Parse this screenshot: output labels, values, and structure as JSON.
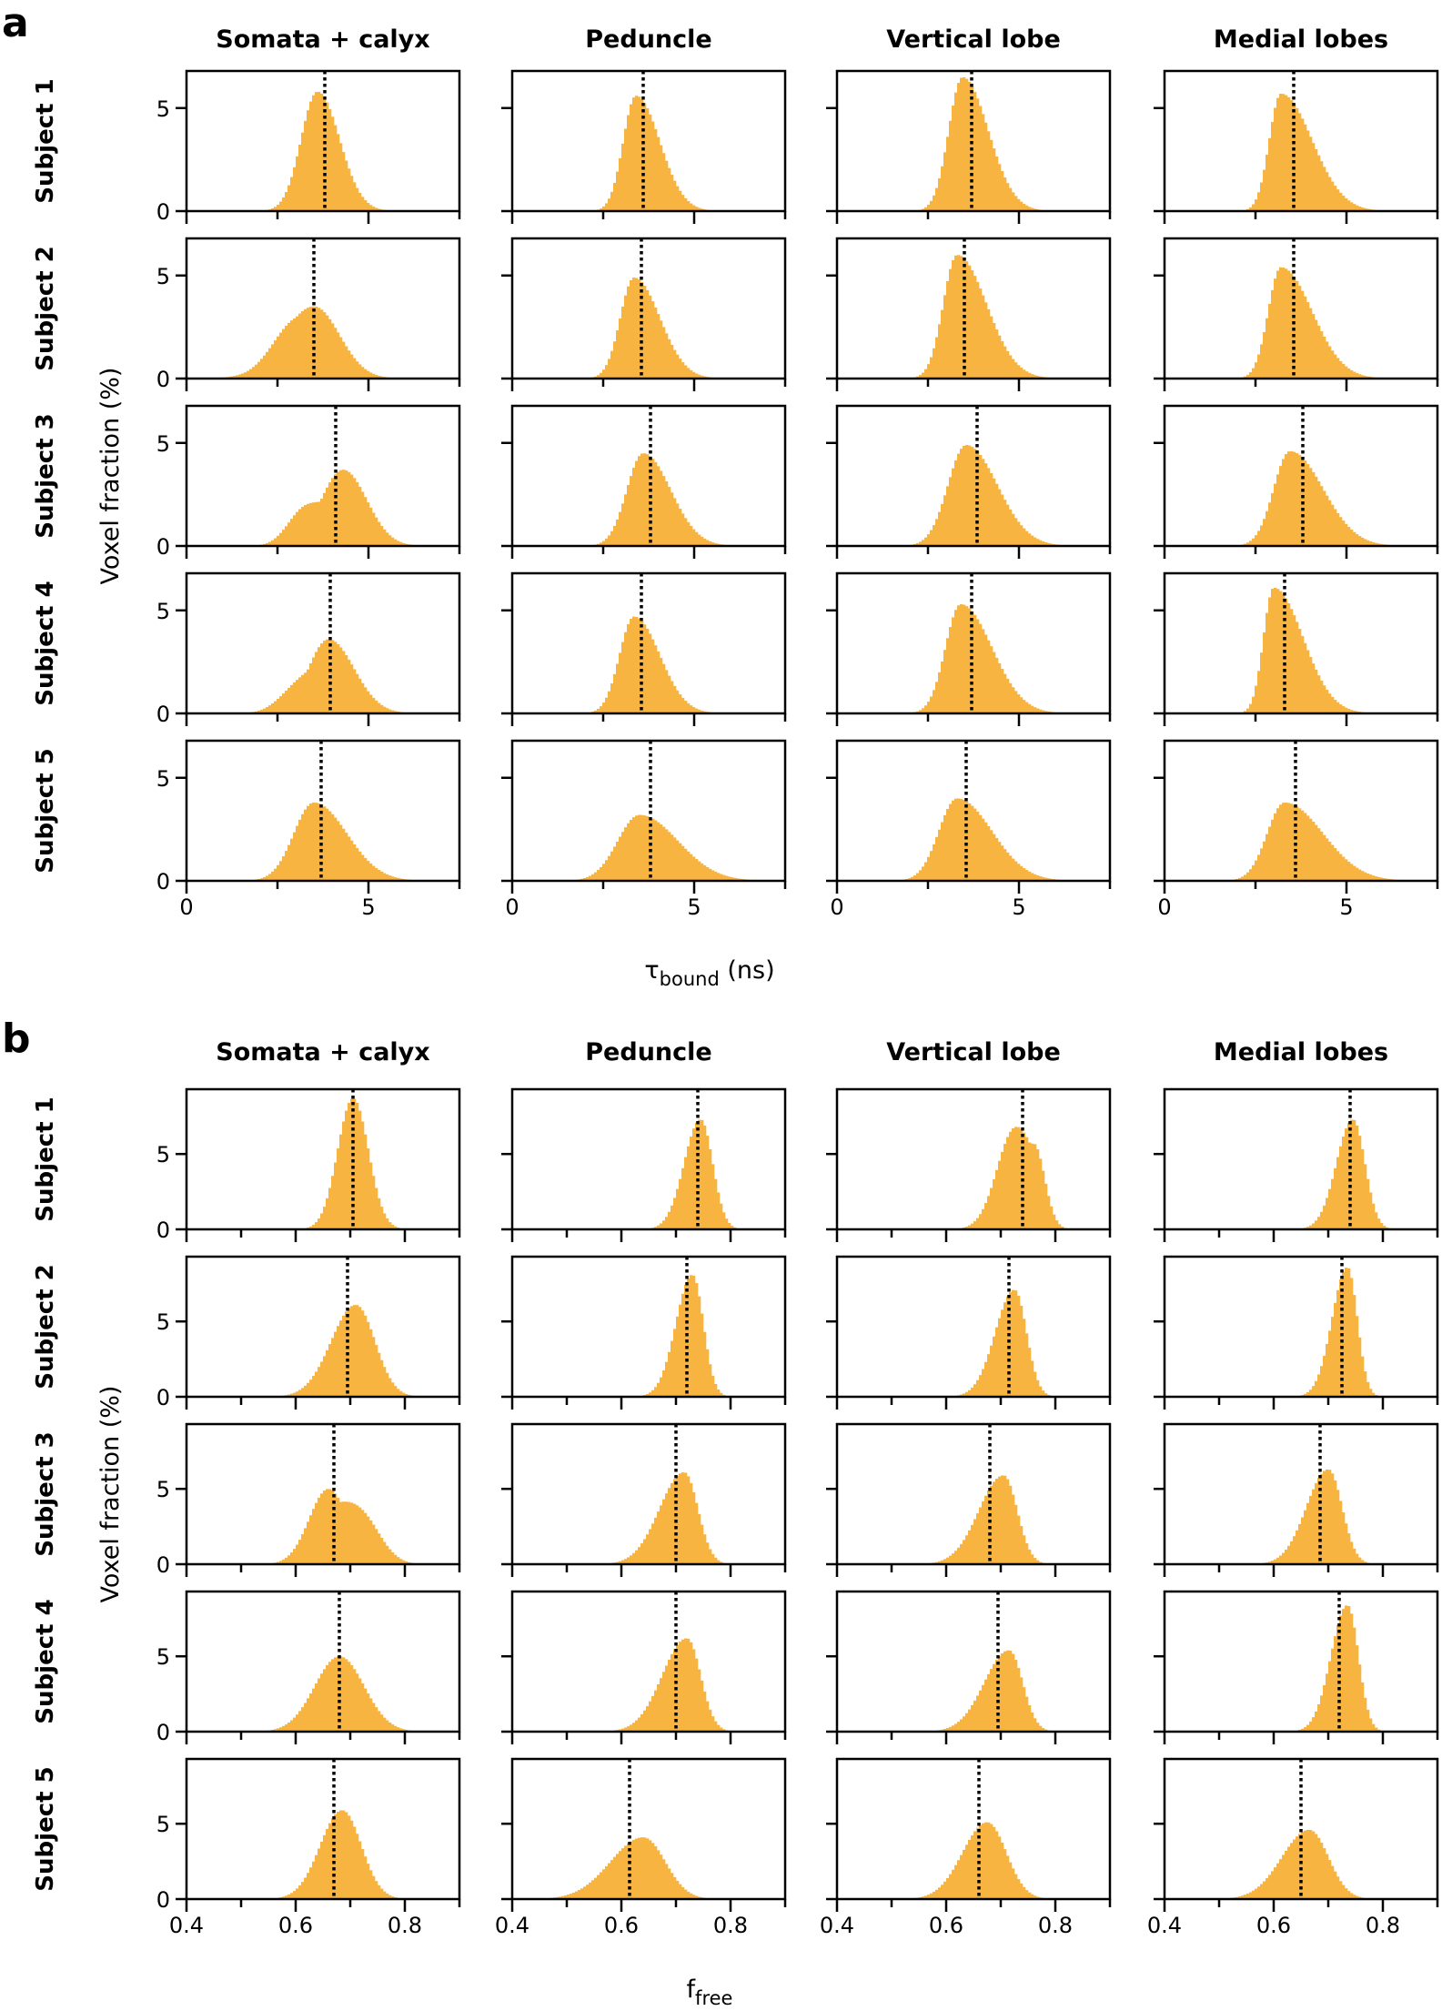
{
  "figure": {
    "bar_color": "#F7B440",
    "mean_line_color": "#000000",
    "mean_line_style": "dotted"
  },
  "chart_data": [
    {
      "panel": "a",
      "type": "bar",
      "subtype": "histogram-grid",
      "columns": [
        "Somata + calyx",
        "Peduncle",
        "Vertical lobe",
        "Medial lobes"
      ],
      "rows": [
        "Subject 1",
        "Subject 2",
        "Subject 3",
        "Subject 4",
        "Subject 5"
      ],
      "xlabel_main": "τ",
      "xlabel_sub": "bound",
      "xlabel_unit": " (ns)",
      "ylabel": "Voxel fraction (%)",
      "xlim": [
        0,
        7.5
      ],
      "ylim": [
        0,
        6.8
      ],
      "xticks": [
        0,
        2.5,
        5,
        7.5
      ],
      "xtick_labels": [
        "0",
        "",
        "5",
        ""
      ],
      "yticks": [
        0,
        5
      ],
      "ytick_labels": [
        "0",
        "5"
      ],
      "grid": false,
      "bin_width": 0.075,
      "description": "Each cell is a histogram of voxel fraction (%) vs tau_bound; dotted line marks the mean. Values summarized by peak location, peak height, spread and skew.",
      "cells": [
        [
          {
            "peak": 3.6,
            "height": 5.8,
            "sd_left": 0.45,
            "sd_right": 0.6,
            "mean": 3.8
          },
          {
            "peak": 3.4,
            "height": 5.6,
            "sd_left": 0.35,
            "sd_right": 0.65,
            "mean": 3.6
          },
          {
            "peak": 3.45,
            "height": 6.5,
            "sd_left": 0.38,
            "sd_right": 0.7,
            "mean": 3.7
          },
          {
            "peak": 3.2,
            "height": 5.7,
            "sd_left": 0.32,
            "sd_right": 0.85,
            "mean": 3.55
          }
        ],
        [
          {
            "peak": 3.5,
            "height": 3.5,
            "sd_left": 0.85,
            "sd_right": 0.7,
            "mean": 3.5,
            "shoulder": {
              "x": 2.9,
              "h": 1.2,
              "sd": 0.6
            }
          },
          {
            "peak": 3.35,
            "height": 4.9,
            "sd_left": 0.38,
            "sd_right": 0.7,
            "mean": 3.55
          },
          {
            "peak": 3.3,
            "height": 6.0,
            "sd_left": 0.38,
            "sd_right": 0.8,
            "mean": 3.5
          },
          {
            "peak": 3.2,
            "height": 5.4,
            "sd_left": 0.35,
            "sd_right": 0.85,
            "mean": 3.55
          }
        ],
        [
          {
            "peak": 4.3,
            "height": 3.7,
            "sd_left": 0.6,
            "sd_right": 0.65,
            "mean": 4.1,
            "shoulder": {
              "x": 3.2,
              "h": 1.5,
              "sd": 0.45
            }
          },
          {
            "peak": 3.6,
            "height": 4.5,
            "sd_left": 0.45,
            "sd_right": 0.75,
            "mean": 3.8
          },
          {
            "peak": 3.55,
            "height": 4.9,
            "sd_left": 0.5,
            "sd_right": 0.85,
            "mean": 3.85
          },
          {
            "peak": 3.45,
            "height": 4.6,
            "sd_left": 0.45,
            "sd_right": 0.9,
            "mean": 3.8
          }
        ],
        [
          {
            "peak": 3.9,
            "height": 3.6,
            "sd_left": 0.55,
            "sd_right": 0.7,
            "mean": 3.95,
            "shoulder": {
              "x": 3.0,
              "h": 1.0,
              "sd": 0.5
            }
          },
          {
            "peak": 3.35,
            "height": 4.7,
            "sd_left": 0.4,
            "sd_right": 0.7,
            "mean": 3.55
          },
          {
            "peak": 3.4,
            "height": 5.3,
            "sd_left": 0.42,
            "sd_right": 0.85,
            "mean": 3.7
          },
          {
            "peak": 3.0,
            "height": 6.1,
            "sd_left": 0.28,
            "sd_right": 0.8,
            "mean": 3.3
          }
        ],
        [
          {
            "peak": 3.5,
            "height": 3.8,
            "sd_left": 0.55,
            "sd_right": 0.9,
            "mean": 3.7
          },
          {
            "peak": 3.5,
            "height": 3.2,
            "sd_left": 0.6,
            "sd_right": 1.05,
            "mean": 3.8
          },
          {
            "peak": 3.3,
            "height": 4.0,
            "sd_left": 0.5,
            "sd_right": 0.95,
            "mean": 3.55
          },
          {
            "peak": 3.3,
            "height": 3.8,
            "sd_left": 0.48,
            "sd_right": 1.05,
            "mean": 3.6
          }
        ]
      ]
    },
    {
      "panel": "b",
      "type": "bar",
      "subtype": "histogram-grid",
      "columns": [
        "Somata + calyx",
        "Peduncle",
        "Vertical lobe",
        "Medial lobes"
      ],
      "rows": [
        "Subject 1",
        "Subject 2",
        "Subject 3",
        "Subject 4",
        "Subject 5"
      ],
      "xlabel_main": "f",
      "xlabel_sub": "free",
      "xlabel_unit": "",
      "ylabel": "Voxel fraction (%)",
      "xlim": [
        0.4,
        0.9
      ],
      "ylim": [
        0,
        9.3
      ],
      "xticks": [
        0.4,
        0.5,
        0.6,
        0.7,
        0.8,
        0.9
      ],
      "xtick_labels": [
        "0.4",
        "",
        "0.6",
        "",
        "0.8",
        ""
      ],
      "yticks": [
        0,
        5
      ],
      "ytick_labels": [
        "0",
        "5"
      ],
      "grid": false,
      "bin_width": 0.005,
      "description": "Each cell is a histogram of voxel fraction (%) vs f_free; dotted line marks the mean.",
      "cells": [
        [
          {
            "peak": 0.705,
            "height": 8.7,
            "sd_left": 0.028,
            "sd_right": 0.028,
            "mean": 0.705
          },
          {
            "peak": 0.745,
            "height": 7.3,
            "sd_left": 0.03,
            "sd_right": 0.022,
            "mean": 0.74
          },
          {
            "peak": 0.76,
            "height": 5.7,
            "sd_left": 0.045,
            "sd_right": 0.02,
            "mean": 0.74,
            "shoulder": {
              "x": 0.72,
              "h": 4.3,
              "sd": 0.03
            }
          },
          {
            "peak": 0.745,
            "height": 7.3,
            "sd_left": 0.03,
            "sd_right": 0.022,
            "mean": 0.74
          }
        ],
        [
          {
            "peak": 0.71,
            "height": 6.1,
            "sd_left": 0.045,
            "sd_right": 0.035,
            "mean": 0.695
          },
          {
            "peak": 0.73,
            "height": 8.1,
            "sd_left": 0.03,
            "sd_right": 0.02,
            "mean": 0.72
          },
          {
            "peak": 0.725,
            "height": 7.1,
            "sd_left": 0.035,
            "sd_right": 0.022,
            "mean": 0.715
          },
          {
            "peak": 0.735,
            "height": 8.6,
            "sd_left": 0.028,
            "sd_right": 0.018,
            "mean": 0.725
          }
        ],
        [
          {
            "peak": 0.66,
            "height": 5.0,
            "sd_left": 0.035,
            "sd_right": 0.035,
            "mean": 0.67,
            "shoulder": {
              "x": 0.72,
              "h": 3.0,
              "sd": 0.035
            }
          },
          {
            "peak": 0.715,
            "height": 6.1,
            "sd_left": 0.045,
            "sd_right": 0.025,
            "mean": 0.7
          },
          {
            "peak": 0.705,
            "height": 5.9,
            "sd_left": 0.045,
            "sd_right": 0.025,
            "mean": 0.68
          },
          {
            "peak": 0.7,
            "height": 6.3,
            "sd_left": 0.04,
            "sd_right": 0.025,
            "mean": 0.685
          }
        ],
        [
          {
            "peak": 0.68,
            "height": 5.0,
            "sd_left": 0.045,
            "sd_right": 0.045,
            "mean": 0.68
          },
          {
            "peak": 0.72,
            "height": 6.2,
            "sd_left": 0.045,
            "sd_right": 0.025,
            "mean": 0.7
          },
          {
            "peak": 0.715,
            "height": 5.4,
            "sd_left": 0.045,
            "sd_right": 0.025,
            "mean": 0.695
          },
          {
            "peak": 0.735,
            "height": 8.4,
            "sd_left": 0.03,
            "sd_right": 0.02,
            "mean": 0.72
          }
        ],
        [
          {
            "peak": 0.685,
            "height": 5.9,
            "sd_left": 0.04,
            "sd_right": 0.035,
            "mean": 0.67
          },
          {
            "peak": 0.64,
            "height": 4.1,
            "sd_left": 0.06,
            "sd_right": 0.04,
            "mean": 0.615
          },
          {
            "peak": 0.675,
            "height": 5.1,
            "sd_left": 0.045,
            "sd_right": 0.035,
            "mean": 0.66
          },
          {
            "peak": 0.665,
            "height": 4.6,
            "sd_left": 0.05,
            "sd_right": 0.035,
            "mean": 0.65
          }
        ]
      ]
    }
  ]
}
